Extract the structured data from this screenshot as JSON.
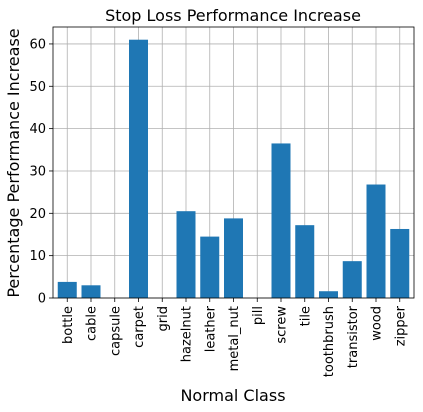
{
  "chart_data": {
    "type": "bar",
    "title": "Stop Loss Performance Increase",
    "xlabel": "Normal Class",
    "ylabel": "Percentage Performance Increase",
    "categories": [
      "bottle",
      "cable",
      "capsule",
      "carpet",
      "grid",
      "hazelnut",
      "leather",
      "metal_nut",
      "pill",
      "screw",
      "tile",
      "toothbrush",
      "transistor",
      "wood",
      "zipper"
    ],
    "values": [
      3.8,
      3.0,
      0,
      61.0,
      0,
      20.5,
      14.5,
      18.8,
      0,
      36.5,
      17.2,
      1.6,
      8.7,
      26.8,
      16.3
    ],
    "ylim": [
      0,
      64
    ],
    "yticks": [
      0,
      10,
      20,
      30,
      40,
      50,
      60
    ],
    "grid": true,
    "bar_color": "#1f77b4"
  }
}
